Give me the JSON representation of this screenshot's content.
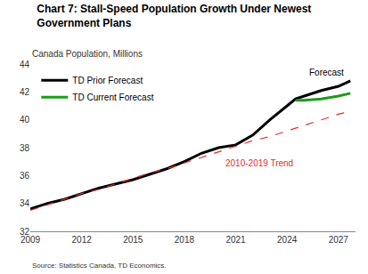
{
  "chart_data": {
    "type": "line",
    "title": "Chart 7: Stall-Speed Population Growth Under Newest Government Plans",
    "subtitle": "Canada Population, Millions",
    "source": "Source: Statistics Canada, TD Economics.",
    "x": [
      2009,
      2010,
      2011,
      2012,
      2013,
      2014,
      2015,
      2016,
      2017,
      2018,
      2019,
      2020,
      2021,
      2022,
      2023,
      2024,
      2024.5,
      2025,
      2026,
      2027,
      2027.7
    ],
    "series": [
      {
        "name": "TD Prior Forecast",
        "color": "#000000",
        "line_style": "solid",
        "values": [
          33.6,
          34.0,
          34.3,
          34.7,
          35.1,
          35.4,
          35.7,
          36.1,
          36.5,
          37.0,
          37.6,
          38.0,
          38.2,
          38.9,
          40.0,
          41.0,
          41.5,
          41.7,
          42.1,
          42.4,
          42.8
        ]
      },
      {
        "name": "TD Current Forecast",
        "color": "#1a9c1a",
        "line_style": "solid",
        "values": [
          null,
          null,
          null,
          null,
          null,
          null,
          null,
          null,
          null,
          null,
          null,
          null,
          null,
          null,
          null,
          null,
          41.4,
          41.4,
          41.5,
          41.7,
          41.9
        ]
      },
      {
        "color": "#e0302a",
        "line_style": "dash",
        "values": [
          33.5,
          33.9,
          34.3,
          34.7,
          35.0,
          35.4,
          35.8,
          36.2,
          36.5,
          36.9,
          37.3,
          37.7,
          38.1,
          38.5,
          38.8,
          39.2,
          39.4,
          39.6,
          40.0,
          40.4,
          40.6
        ]
      }
    ],
    "annotations": [
      {
        "text": "Forecast",
        "x": 2026.3,
        "y": 43.4,
        "color": "#000000"
      },
      {
        "text": "2010-2019 Trend",
        "x": 2022.4,
        "y": 36.9,
        "color": "#e0302a"
      }
    ],
    "xlim": [
      2009,
      2028
    ],
    "xticks": [
      2009,
      2012,
      2015,
      2018,
      2021,
      2024,
      2027
    ],
    "ylim": [
      32,
      44
    ],
    "yticks": [
      32,
      34,
      36,
      38,
      40,
      42,
      44
    ],
    "grid": false,
    "legend": "top-left"
  }
}
